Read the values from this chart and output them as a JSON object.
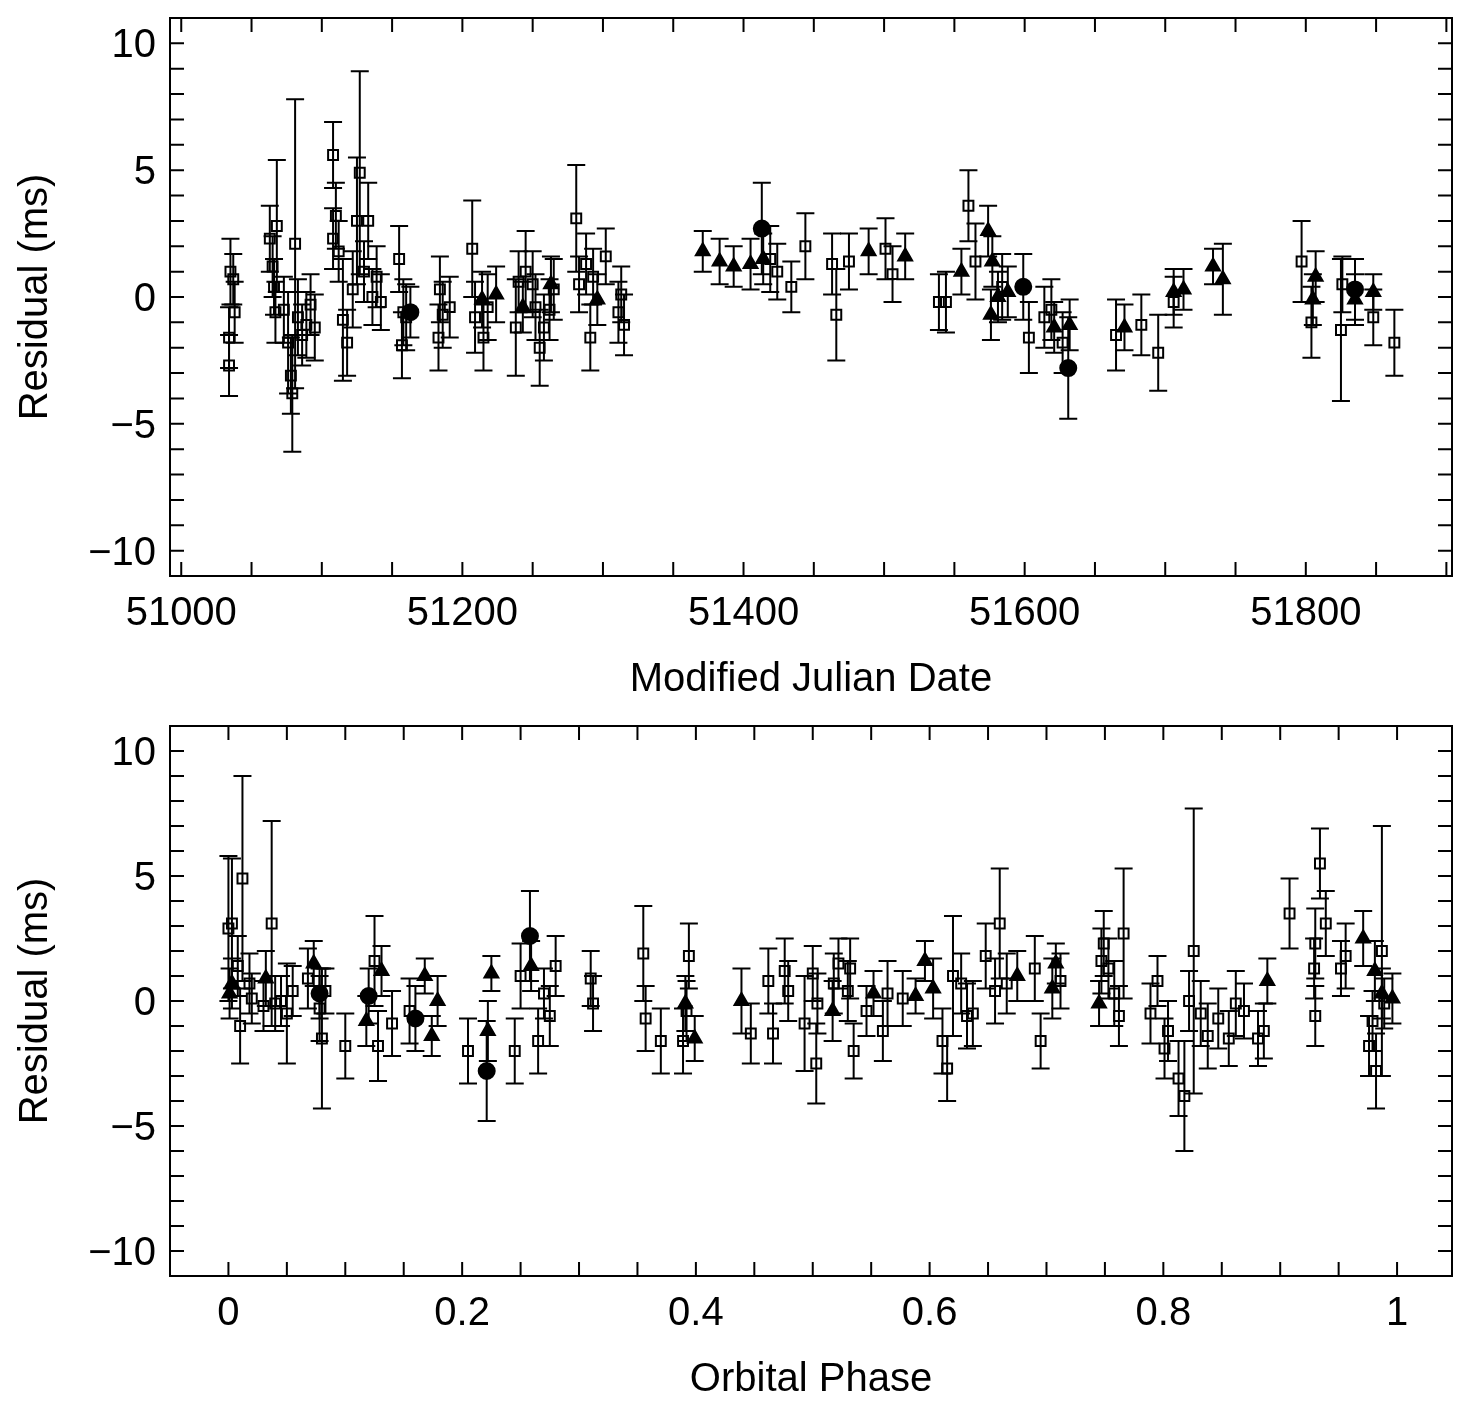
{
  "chart_data": [
    {
      "type": "scatter",
      "xlabel": "Modified Julian Date",
      "ylabel": "Residual (ms)",
      "grid": false,
      "xlim": [
        50992,
        51904
      ],
      "xticks": [
        51000,
        {
          "value": 51050,
          "label": null
        },
        {
          "value": 51100,
          "label": null
        },
        {
          "value": 51150,
          "label": null
        },
        51200,
        {
          "value": 51250,
          "label": null
        },
        {
          "value": 51300,
          "label": null
        },
        {
          "value": 51350,
          "label": null
        },
        51400,
        {
          "value": 51450,
          "label": null
        },
        {
          "value": 51500,
          "label": null
        },
        {
          "value": 51550,
          "label": null
        },
        51600,
        {
          "value": 51650,
          "label": null
        },
        {
          "value": 51700,
          "label": null
        },
        {
          "value": 51750,
          "label": null
        },
        51800,
        {
          "value": 51850,
          "label": null
        },
        {
          "value": 51900,
          "label": null
        }
      ],
      "ylim": [
        -11,
        11
      ],
      "yticks": [
        {
          "value": -10,
          "label": "−10"
        },
        {
          "value": -9,
          "label": null
        },
        {
          "value": -8,
          "label": null
        },
        {
          "value": -7,
          "label": null
        },
        {
          "value": -6,
          "label": null
        },
        {
          "value": -5,
          "label": "−5"
        },
        {
          "value": -4,
          "label": null
        },
        {
          "value": -3,
          "label": null
        },
        {
          "value": -2,
          "label": null
        },
        {
          "value": -1,
          "label": null
        },
        0,
        {
          "value": 1,
          "label": null
        },
        {
          "value": 2,
          "label": null
        },
        {
          "value": 3,
          "label": null
        },
        {
          "value": 4,
          "label": null
        },
        5,
        {
          "value": 6,
          "label": null
        },
        {
          "value": 7,
          "label": null
        },
        {
          "value": 8,
          "label": null
        },
        {
          "value": 9,
          "label": null
        },
        10
      ],
      "series": [
        {
          "color": "#000000",
          "marker": "square",
          "x": [
            51034,
            51034,
            51035,
            51037,
            51038,
            51063,
            51065,
            51066,
            51068,
            51067,
            51073,
            51076,
            51078,
            51079,
            51081,
            51083,
            51086,
            51089,
            51092,
            51095,
            51108,
            51108,
            51110,
            51112,
            51115,
            51118,
            51122,
            51125,
            51127,
            51130,
            51133,
            51136,
            51139,
            51142,
            51155,
            51157,
            51158,
            51160,
            51183,
            51184,
            51186,
            51191,
            51207,
            51209,
            51215,
            51218,
            51238,
            51240,
            51245,
            51250,
            51252,
            51255,
            51258,
            51262,
            51265,
            51281,
            51283,
            51288,
            51291,
            51293,
            51302,
            51311,
            51313,
            51315,
            51419,
            51424,
            51434,
            51444,
            51463,
            51466,
            51475,
            51501,
            51506,
            51539,
            51544,
            51560,
            51565,
            51584,
            51603,
            51614,
            51619,
            51627,
            51665,
            51683,
            51695,
            51706,
            51797,
            51804,
            51825,
            51826,
            51848,
            51863
          ],
          "values": [
            -1.6,
            -2.7,
            1.0,
            0.7,
            -0.6,
            2.3,
            1.2,
            0.4,
            2.8,
            -0.6,
            -0.5,
            -1.8,
            -3.1,
            -3.8,
            2.1,
            -0.8,
            -1.5,
            -1.1,
            -0.3,
            -1.2,
            5.6,
            2.3,
            3.2,
            1.8,
            -0.9,
            -1.8,
            0.3,
            3.0,
            4.9,
            1.0,
            3.0,
            0.0,
            0.8,
            -0.2,
            1.5,
            -1.9,
            -0.6,
            -0.8,
            -1.6,
            0.3,
            -0.7,
            -0.4,
            1.9,
            -0.8,
            -1.6,
            -0.4,
            -1.2,
            0.6,
            1.0,
            0.5,
            -0.4,
            -2.0,
            -1.2,
            -0.5,
            0.3,
            3.1,
            0.5,
            1.3,
            -1.6,
            0.8,
            1.6,
            -0.6,
            0.1,
            -1.1,
            1.5,
            1.0,
            0.4,
            2.0,
            1.3,
            -0.7,
            1.4,
            1.9,
            0.9,
            -0.2,
            -0.2,
            3.6,
            1.4,
            0.4,
            -1.6,
            -0.8,
            -0.5,
            -1.8,
            -1.5,
            -1.1,
            -2.2,
            -0.2,
            1.4,
            -1.0,
            -1.3,
            0.5,
            -0.8,
            -1.8
          ],
          "errors": [
            1.2,
            1.2,
            1.3,
            1.0,
            1.2,
            1.3,
            1.2,
            1.1,
            2.6,
            1.2,
            1.3,
            2.0,
            1.5,
            2.3,
            5.7,
            1.5,
            1.2,
            1.3,
            1.2,
            1.3,
            1.3,
            1.2,
            1.3,
            1.2,
            2.4,
            1.3,
            1.5,
            2.5,
            4.0,
            1.2,
            1.5,
            1.1,
            1.2,
            1.1,
            1.3,
            1.3,
            1.3,
            1.3,
            1.3,
            1.3,
            1.3,
            1.2,
            1.9,
            1.4,
            1.3,
            1.3,
            1.9,
            1.2,
            1.6,
            1.3,
            1.3,
            1.5,
            1.3,
            1.2,
            1.2,
            2.1,
            1.1,
            1.2,
            1.3,
            1.1,
            1.1,
            1.2,
            1.1,
            1.2,
            1.3,
            1.1,
            1.0,
            1.3,
            1.2,
            1.8,
            1.1,
            1.2,
            1.1,
            1.1,
            1.2,
            1.4,
            1.5,
            1.3,
            1.4,
            1.2,
            1.2,
            1.2,
            1.4,
            1.2,
            1.5,
            1.0,
            1.6,
            1.4,
            2.8,
            1.1,
            1.1,
            1.3
          ]
        },
        {
          "color": "#000000",
          "marker": "triangle",
          "x": [
            51214,
            51224,
            51243,
            51263,
            51296,
            51371,
            51383,
            51393,
            51405,
            51414,
            51489,
            51515,
            51555,
            51574,
            51577,
            51581,
            51576,
            51588,
            51621,
            51632,
            51671,
            51706,
            51713,
            51734,
            51741,
            51807,
            51805,
            51835,
            51848
          ],
          "values": [
            -0.1,
            0.1,
            -0.4,
            0.5,
            -0.1,
            1.8,
            1.4,
            1.2,
            1.3,
            1.5,
            1.8,
            1.6,
            1.0,
            2.6,
            1.4,
            0.0,
            -0.7,
            0.2,
            -1.2,
            -1.1,
            -1.2,
            0.2,
            0.3,
            1.2,
            0.7,
            0.8,
            -0.1,
            -0.1,
            0.2
          ],
          "errors": [
            1.1,
            1.1,
            1.0,
            1.1,
            1.0,
            0.8,
            0.9,
            0.8,
            1.0,
            1.0,
            0.9,
            0.9,
            0.9,
            1.0,
            1.0,
            1.0,
            1.0,
            1.0,
            1.0,
            1.0,
            0.9,
            0.9,
            0.8,
            0.7,
            1.4,
            1.0,
            1.0,
            1.0,
            0.7
          ]
        },
        {
          "color": "#000000",
          "marker": "circle",
          "x": [
            51163,
            51413,
            51599,
            51631,
            51835
          ],
          "values": [
            -0.6,
            2.7,
            0.4,
            -2.8,
            0.3
          ],
          "errors": [
            1.0,
            1.8,
            1.3,
            2.0,
            1.2
          ]
        }
      ]
    },
    {
      "type": "scatter",
      "xlabel": "Orbital Phase",
      "ylabel": "Residual (ms)",
      "grid": false,
      "xlim": [
        -0.05,
        1.047
      ],
      "xticks": [
        0,
        {
          "value": 0.05,
          "label": null
        },
        {
          "value": 0.1,
          "label": null
        },
        {
          "value": 0.15,
          "label": null
        },
        0.2,
        {
          "value": 0.25,
          "label": null
        },
        {
          "value": 0.3,
          "label": null
        },
        {
          "value": 0.35,
          "label": null
        },
        0.4,
        {
          "value": 0.45,
          "label": null
        },
        {
          "value": 0.5,
          "label": null
        },
        {
          "value": 0.55,
          "label": null
        },
        0.6,
        {
          "value": 0.65,
          "label": null
        },
        {
          "value": 0.7,
          "label": null
        },
        {
          "value": 0.75,
          "label": null
        },
        0.8,
        {
          "value": 0.85,
          "label": null
        },
        {
          "value": 0.9,
          "label": null
        },
        {
          "value": 0.95,
          "label": null
        },
        1
      ],
      "ylim": [
        -11,
        11
      ],
      "yticks": [
        {
          "value": -10,
          "label": "−10"
        },
        {
          "value": -9,
          "label": null
        },
        {
          "value": -8,
          "label": null
        },
        {
          "value": -7,
          "label": null
        },
        {
          "value": -6,
          "label": null
        },
        {
          "value": -5,
          "label": "−5"
        },
        {
          "value": -4,
          "label": null
        },
        {
          "value": -3,
          "label": null
        },
        {
          "value": -2,
          "label": null
        },
        {
          "value": -1,
          "label": null
        },
        0,
        {
          "value": 1,
          "label": null
        },
        {
          "value": 2,
          "label": null
        },
        {
          "value": 3,
          "label": null
        },
        {
          "value": 4,
          "label": null
        },
        5,
        {
          "value": 6,
          "label": null
        },
        {
          "value": 7,
          "label": null
        },
        {
          "value": 8,
          "label": null
        },
        {
          "value": 9,
          "label": null
        },
        10
      ],
      "series": [
        {
          "color": "#000000",
          "marker": "square",
          "x": [
            0.0,
            0.003,
            0.008,
            0.012,
            0.01,
            0.018,
            0.02,
            0.03,
            0.037,
            0.04,
            0.045,
            0.05,
            0.055,
            0.068,
            0.078,
            0.08,
            0.083,
            0.1,
            0.125,
            0.128,
            0.14,
            0.155,
            0.205,
            0.245,
            0.25,
            0.265,
            0.27,
            0.275,
            0.28,
            0.31,
            0.312,
            0.355,
            0.357,
            0.37,
            0.389,
            0.394,
            0.392,
            0.447,
            0.462,
            0.466,
            0.476,
            0.479,
            0.493,
            0.5,
            0.503,
            0.504,
            0.518,
            0.522,
            0.532,
            0.53,
            0.535,
            0.546,
            0.56,
            0.564,
            0.577,
            0.611,
            0.615,
            0.62,
            0.627,
            0.632,
            0.637,
            0.648,
            0.656,
            0.66,
            0.666,
            0.69,
            0.695,
            0.712,
            0.747,
            0.749,
            0.753,
            0.758,
            0.762,
            0.766,
            0.789,
            0.795,
            0.801,
            0.804,
            0.813,
            0.818,
            0.826,
            0.822,
            0.832,
            0.838,
            0.847,
            0.856,
            0.862,
            0.869,
            0.881,
            0.886,
            0.908,
            0.93,
            0.934,
            0.929,
            0.93,
            0.939,
            0.952,
            0.956,
            0.976,
            0.982,
            0.987,
            0.989,
            0.979
          ],
          "values": [
            2.9,
            3.1,
            1.4,
            4.9,
            -1.0,
            0.7,
            0.1,
            -0.2,
            3.1,
            -0.1,
            0.0,
            -0.5,
            0.4,
            0.9,
            -0.3,
            -1.5,
            0.4,
            -1.8,
            1.6,
            -1.8,
            -0.9,
            -0.4,
            -2.0,
            -2.0,
            1.0,
            -1.6,
            0.3,
            -0.6,
            1.4,
            0.9,
            -0.1,
            1.9,
            -0.7,
            -1.6,
            -1.6,
            1.8,
            -0.4,
            -1.3,
            0.8,
            -1.3,
            1.2,
            0.4,
            -0.9,
            1.1,
            -2.5,
            -0.1,
            0.7,
            1.5,
            1.3,
            0.4,
            -2.0,
            -0.4,
            -1.2,
            0.3,
            0.1,
            -1.6,
            -2.7,
            1.0,
            0.7,
            -0.6,
            -0.5,
            1.8,
            0.4,
            3.1,
            0.7,
            1.3,
            -1.6,
            0.8,
            1.6,
            2.3,
            1.3,
            0.3,
            -0.6,
            2.7,
            -0.5,
            0.8,
            -1.9,
            -1.2,
            -3.1,
            -3.8,
            2.0,
            0.0,
            -0.5,
            -1.4,
            -0.7,
            -1.5,
            -0.1,
            -0.4,
            -1.5,
            -1.2,
            3.5,
            2.3,
            5.5,
            1.3,
            -0.6,
            3.1,
            1.3,
            1.8,
            -1.8,
            -2.8,
            2.0,
            -0.1,
            -0.8
          ],
          "errors": [
            2.9,
            2.6,
            1.2,
            4.1,
            1.5,
            1.2,
            1.0,
            1.0,
            4.1,
            1.1,
            1.0,
            2.0,
            1.0,
            1.2,
            1.3,
            2.8,
            0.9,
            1.3,
            1.8,
            1.4,
            1.3,
            1.3,
            1.3,
            1.3,
            1.3,
            1.3,
            1.0,
            1.2,
            1.2,
            1.1,
            1.1,
            1.9,
            1.3,
            1.3,
            1.3,
            1.3,
            1.2,
            1.2,
            1.3,
            1.2,
            1.3,
            1.2,
            1.9,
            1.1,
            1.6,
            1.2,
            1.2,
            1.0,
            1.2,
            1.2,
            1.1,
            1.0,
            1.2,
            1.3,
            1.1,
            1.3,
            1.3,
            2.4,
            1.2,
            1.3,
            1.3,
            1.3,
            1.3,
            2.2,
            1.2,
            1.3,
            1.1,
            1.1,
            1.3,
            1.3,
            1.2,
            1.3,
            1.2,
            2.6,
            1.2,
            1.0,
            1.2,
            1.2,
            1.5,
            2.2,
            5.7,
            1.2,
            1.3,
            1.3,
            1.2,
            1.1,
            1.3,
            1.1,
            1.1,
            1.1,
            1.4,
            1.4,
            1.4,
            1.2,
            1.2,
            1.3,
            1.1,
            1.3,
            1.2,
            1.5,
            5.0,
            1.0,
            1.2
          ]
        },
        {
          "color": "#000000",
          "marker": "triangle",
          "x": [
            0.003,
            0.001,
            0.032,
            0.073,
            0.131,
            0.118,
            0.168,
            0.174,
            0.179,
            0.225,
            0.222,
            0.259,
            0.391,
            0.399,
            0.439,
            0.517,
            0.552,
            0.588,
            0.596,
            0.603,
            0.675,
            0.705,
            0.708,
            0.745,
            0.889,
            0.971,
            0.981,
            0.987,
            0.996
          ],
          "values": [
            0.7,
            0.3,
            0.9,
            1.5,
            1.2,
            -0.8,
            1.0,
            -1.4,
            0.0,
            1.1,
            -1.2,
            1.4,
            -0.1,
            -1.5,
            0.0,
            -0.4,
            0.3,
            0.2,
            1.6,
            0.5,
            1.0,
            0.5,
            1.5,
            -0.1,
            0.8,
            2.5,
            1.2,
            0.3,
            0.1
          ],
          "errors": [
            1.0,
            1.0,
            1.1,
            0.9,
            1.0,
            1.0,
            0.7,
            0.8,
            1.0,
            0.7,
            1.2,
            1.0,
            1.1,
            0.9,
            1.3,
            1.2,
            0.9,
            0.7,
            0.8,
            1.2,
            1.0,
            1.2,
            0.8,
            0.9,
            0.9,
            1.1,
            1.2,
            1.0,
            1.0
          ]
        },
        {
          "color": "#000000",
          "marker": "circle",
          "x": [
            0.078,
            0.12,
            0.16,
            0.221,
            0.258
          ],
          "values": [
            0.3,
            0.2,
            -0.7,
            -2.8,
            2.6
          ],
          "errors": [
            1.0,
            1.1,
            1.3,
            2.0,
            1.8
          ]
        }
      ]
    }
  ]
}
